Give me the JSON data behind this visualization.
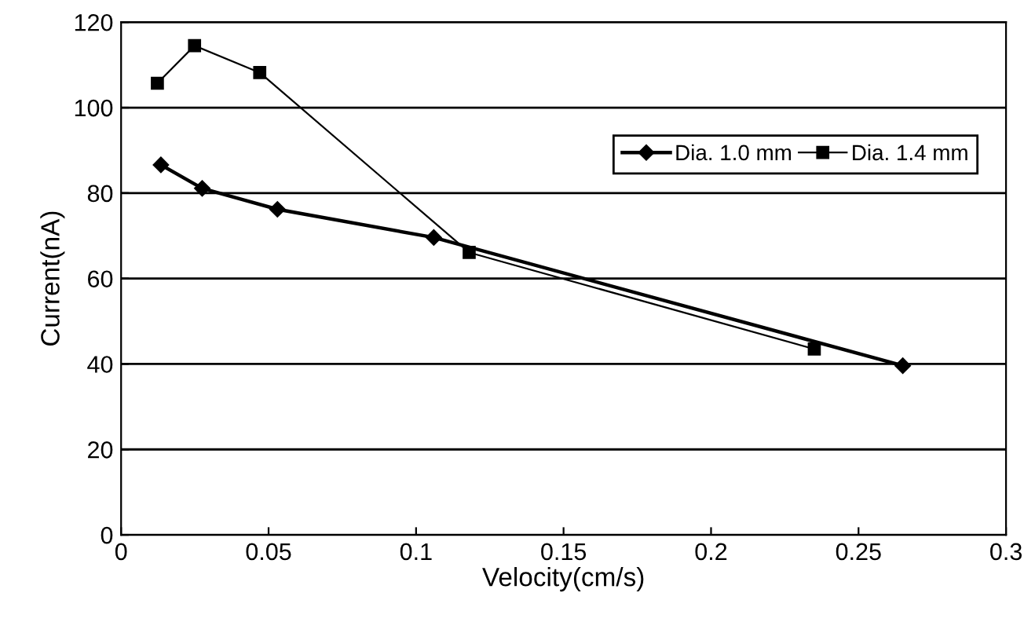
{
  "chart_data": {
    "type": "line",
    "xlabel": "Velocity(cm/s)",
    "ylabel": "Current(nA)",
    "xlim": [
      0,
      0.3
    ],
    "xticks": [
      0,
      0.05,
      0.1,
      0.15,
      0.2,
      0.25,
      0.3
    ],
    "ylim": [
      0,
      120
    ],
    "yticks": [
      0,
      20,
      40,
      60,
      80,
      100,
      120
    ],
    "grid": "y",
    "legend": "top right",
    "series": [
      {
        "name": "Dia. 1.0 mm",
        "color": "#000000",
        "marker": "diamond",
        "line_style": "solid",
        "x": [
          0.0135,
          0.0275,
          0.053,
          0.106,
          0.265
        ],
        "values": [
          86.6,
          81.1,
          76.2,
          69.6,
          39.6
        ]
      },
      {
        "name": "Dia. 1.4 mm",
        "color": "#000000",
        "marker": "square",
        "line_style": "solid",
        "x": [
          0.0123,
          0.0249,
          0.047,
          0.118,
          0.235
        ],
        "values": [
          105.7,
          114.5,
          108.2,
          66.1,
          43.5
        ]
      }
    ]
  }
}
